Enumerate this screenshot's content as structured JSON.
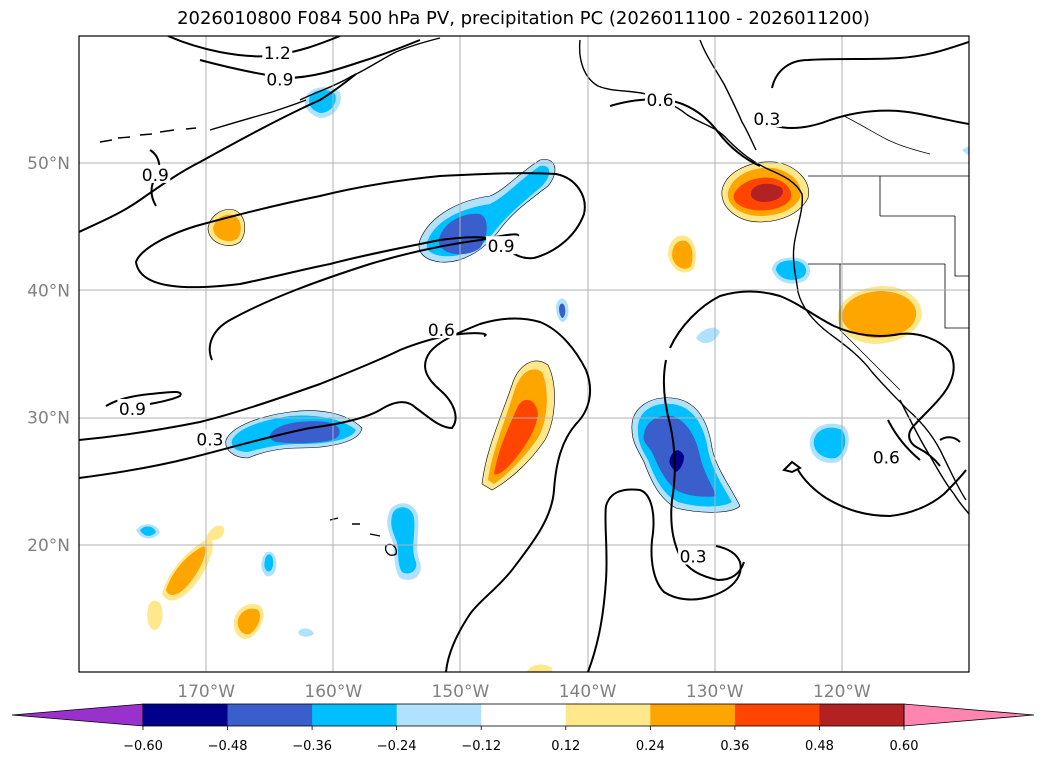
{
  "chart_data": {
    "type": "map",
    "title": "2026010800 F084 500 hPa PV, precipitation PC (2026011100 - 2026011200)",
    "lon_range": [
      -180,
      -110
    ],
    "lat_range": [
      10,
      60
    ],
    "lon_ticks": [
      {
        "value": -170,
        "label": "170°W"
      },
      {
        "value": -160,
        "label": "160°W"
      },
      {
        "value": -150,
        "label": "150°W"
      },
      {
        "value": -140,
        "label": "140°W"
      },
      {
        "value": -130,
        "label": "130°W"
      },
      {
        "value": -120,
        "label": "120°W"
      }
    ],
    "lat_ticks": [
      {
        "value": 50,
        "label": "50°N"
      },
      {
        "value": 40,
        "label": "40°N"
      },
      {
        "value": 30,
        "label": "30°N"
      },
      {
        "value": 20,
        "label": "20°N"
      }
    ],
    "grid": true,
    "colorbar": {
      "extend": "both",
      "ticks": [
        "−0.60",
        "−0.48",
        "−0.36",
        "−0.24",
        "−0.12",
        "0.12",
        "0.24",
        "0.36",
        "0.48",
        "0.60"
      ],
      "colors": [
        "#9932cc",
        "#00008b",
        "#3a5fcd",
        "#00bfff",
        "#b0e2ff",
        "#ffffff",
        "#ffe88c",
        "#ffa500",
        "#ff4500",
        "#b22222",
        "#ff85b0"
      ]
    },
    "pv_contour_labels": [
      {
        "text": "1.2",
        "lon": -164.4,
        "lat": 58.6
      },
      {
        "text": "0.9",
        "lon": -164.2,
        "lat": 56.5
      },
      {
        "text": "0.9",
        "lon": -174.0,
        "lat": 49.0
      },
      {
        "text": "0.9",
        "lon": -146.8,
        "lat": 43.4
      },
      {
        "text": "0.6",
        "lon": -134.3,
        "lat": 54.9
      },
      {
        "text": "0.3",
        "lon": -125.9,
        "lat": 53.4
      },
      {
        "text": "0.6",
        "lon": -151.5,
        "lat": 36.8
      },
      {
        "text": "0.9",
        "lon": -175.8,
        "lat": 30.6
      },
      {
        "text": "0.3",
        "lon": -169.7,
        "lat": 28.2
      },
      {
        "text": "0.3",
        "lon": -131.7,
        "lat": 19.0
      },
      {
        "text": "0.6",
        "lon": -116.5,
        "lat": 26.8
      }
    ]
  }
}
